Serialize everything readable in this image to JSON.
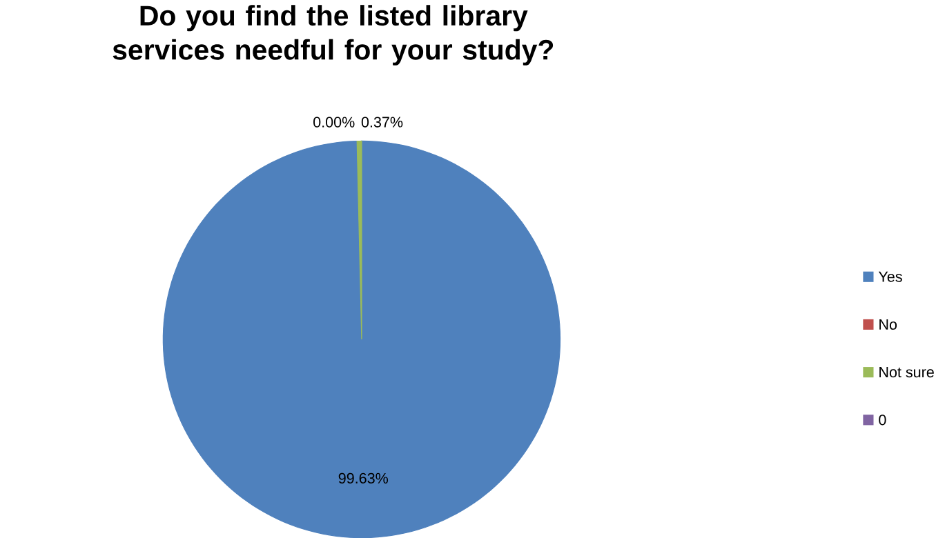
{
  "chart_data": {
    "type": "pie",
    "title": "Do you find the listed library services needful for your study?",
    "categories": [
      "Yes",
      "No",
      "Not sure",
      "0"
    ],
    "values": [
      99.63,
      0,
      0.37,
      0
    ],
    "colors": [
      "#4f81bd",
      "#c0504d",
      "#9bbb59",
      "#8064a2"
    ],
    "value_labels": [
      "99.63%",
      "0.00%",
      "0.37%",
      null
    ],
    "legend": "right"
  }
}
